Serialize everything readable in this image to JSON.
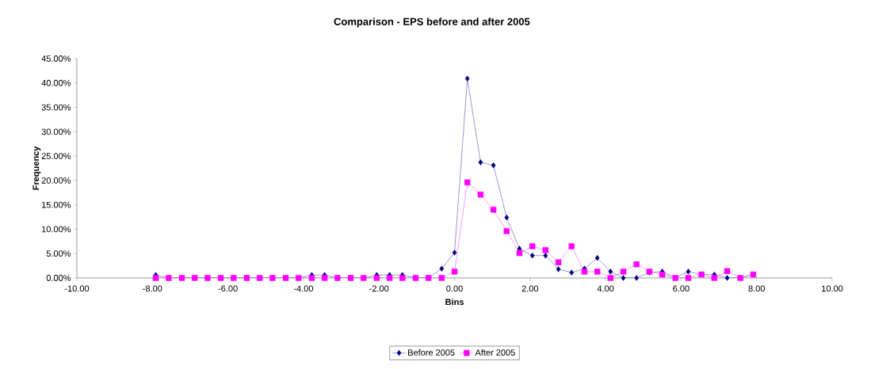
{
  "chart_data": {
    "type": "line",
    "title": "Comparison - EPS before and after 2005",
    "xlabel": "Bins",
    "ylabel": "Frequency",
    "x": [
      -7.91,
      -7.57,
      -7.22,
      -6.88,
      -6.54,
      -6.19,
      -5.85,
      -5.5,
      -5.16,
      -4.82,
      -4.47,
      -4.13,
      -3.78,
      -3.44,
      -3.1,
      -2.75,
      -2.41,
      -2.06,
      -1.72,
      -1.38,
      -1.03,
      -0.69,
      -0.34,
      0,
      0.34,
      0.69,
      1.03,
      1.38,
      1.72,
      2.06,
      2.41,
      2.75,
      3.1,
      3.44,
      3.78,
      4.13,
      4.47,
      4.82,
      5.16,
      5.5,
      5.85,
      6.19,
      6.54,
      6.88,
      7.22,
      7.57,
      7.91
    ],
    "series": [
      {
        "name": "Before 2005",
        "color": "#000080",
        "marker": "diamond",
        "values": [
          0.6,
          0,
          0,
          0,
          0,
          0,
          0,
          0,
          0,
          0,
          0,
          0,
          0.6,
          0.6,
          0,
          0,
          0,
          0.6,
          0.6,
          0.6,
          0,
          0,
          1.9,
          5.2,
          40.9,
          23.7,
          23.1,
          12.4,
          6.0,
          4.6,
          4.6,
          1.8,
          1.1,
          1.9,
          4.1,
          1.3,
          0,
          0,
          1.1,
          1.3,
          0,
          1.3,
          0.7,
          0.7,
          0,
          0,
          0.7
        ]
      },
      {
        "name": "After 2005",
        "color": "#ff00ff",
        "marker": "square",
        "values": [
          0,
          0,
          0,
          0,
          0,
          0,
          0,
          0,
          0,
          0,
          0,
          0,
          0,
          0,
          0,
          0,
          0,
          0,
          0,
          0,
          0,
          0,
          0,
          1.3,
          19.6,
          17.1,
          14.0,
          9.6,
          5.1,
          6.5,
          5.7,
          3.2,
          6.5,
          1.3,
          1.3,
          0,
          1.3,
          2.8,
          1.3,
          0.7,
          0,
          0,
          0.7,
          0,
          1.4,
          0,
          0.7
        ]
      }
    ],
    "xlim": [
      -10,
      10
    ],
    "xticks": [
      {
        "value": -10,
        "label": "-10.00"
      },
      {
        "value": -8,
        "label": "-8.00"
      },
      {
        "value": -6,
        "label": "-6.00"
      },
      {
        "value": -4,
        "label": "-4.00"
      },
      {
        "value": -2,
        "label": "-2.00"
      },
      {
        "value": 0,
        "label": "0.00"
      },
      {
        "value": 2,
        "label": "2.00"
      },
      {
        "value": 4,
        "label": "4.00"
      },
      {
        "value": 6,
        "label": "6.00"
      },
      {
        "value": 8,
        "label": "8.00"
      },
      {
        "value": 10,
        "label": "10.00"
      }
    ],
    "ylim": [
      0,
      45
    ],
    "yticks": [
      {
        "value": 0,
        "label": "0.00%"
      },
      {
        "value": 5,
        "label": "5.00%"
      },
      {
        "value": 10,
        "label": "10.00%"
      },
      {
        "value": 15,
        "label": "15.00%"
      },
      {
        "value": 20,
        "label": "20.00%"
      },
      {
        "value": 25,
        "label": "25.00%"
      },
      {
        "value": 30,
        "label": "30.00%"
      },
      {
        "value": 35,
        "label": "35.00%"
      },
      {
        "value": 40,
        "label": "40.00%"
      },
      {
        "value": 45,
        "label": "45.00%"
      }
    ],
    "legend": "bottom",
    "line_style": "solid",
    "grid": false
  }
}
